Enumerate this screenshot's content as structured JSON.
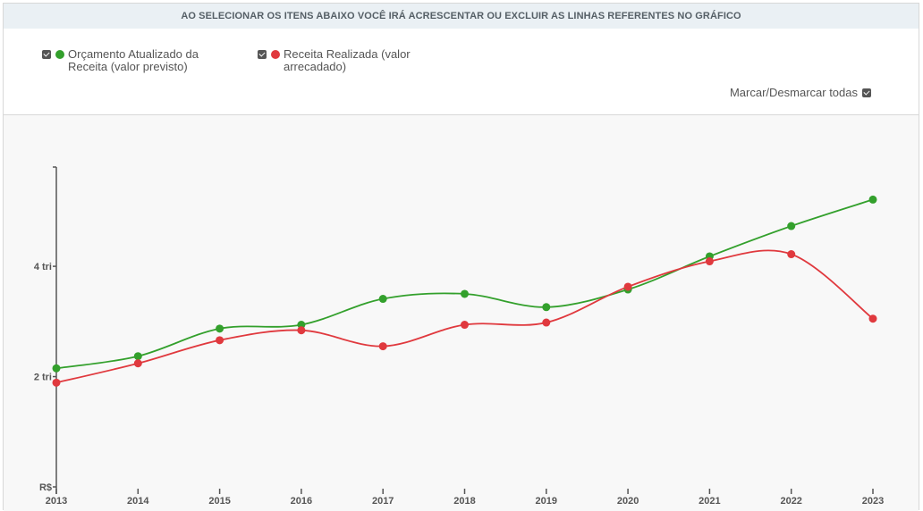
{
  "banner": {
    "text": "AO SELECIONAR OS ITENS ABAIXO VOCÊ IRÁ ACRESCENTAR OU EXCLUIR AS LINHAS REFERENTES NO GRÁFICO"
  },
  "legend": {
    "items": [
      {
        "label": "Orçamento Atualizado da Receita (valor previsto)",
        "color": "#33a02c"
      },
      {
        "label": "Receita Realizada (valor arrecadado)",
        "color": "#e0393e"
      }
    ],
    "toggle_all_label": "Marcar/Desmarcar todas"
  },
  "chart_data": {
    "type": "line",
    "x": [
      "2013",
      "2014",
      "2015",
      "2016",
      "2017",
      "2018",
      "2019",
      "2020",
      "2021",
      "2022",
      "2023"
    ],
    "y_unit_label": "R$",
    "yticks": [
      {
        "value": 0,
        "label": "R$"
      },
      {
        "value": 2,
        "label": "2 tri"
      },
      {
        "value": 4,
        "label": "4 tri"
      }
    ],
    "ylim": [
      0,
      5.8
    ],
    "grid": false,
    "series": [
      {
        "name": "Orçamento Atualizado da Receita (valor previsto)",
        "color": "#33a02c",
        "values": [
          2.15,
          2.37,
          2.87,
          2.94,
          3.41,
          3.5,
          3.26,
          3.58,
          4.18,
          4.73,
          5.21
        ]
      },
      {
        "name": "Receita Realizada (valor arrecadado)",
        "color": "#e0393e",
        "values": [
          1.89,
          2.24,
          2.66,
          2.84,
          2.55,
          2.94,
          2.98,
          3.63,
          4.09,
          4.22,
          3.05
        ]
      }
    ]
  }
}
